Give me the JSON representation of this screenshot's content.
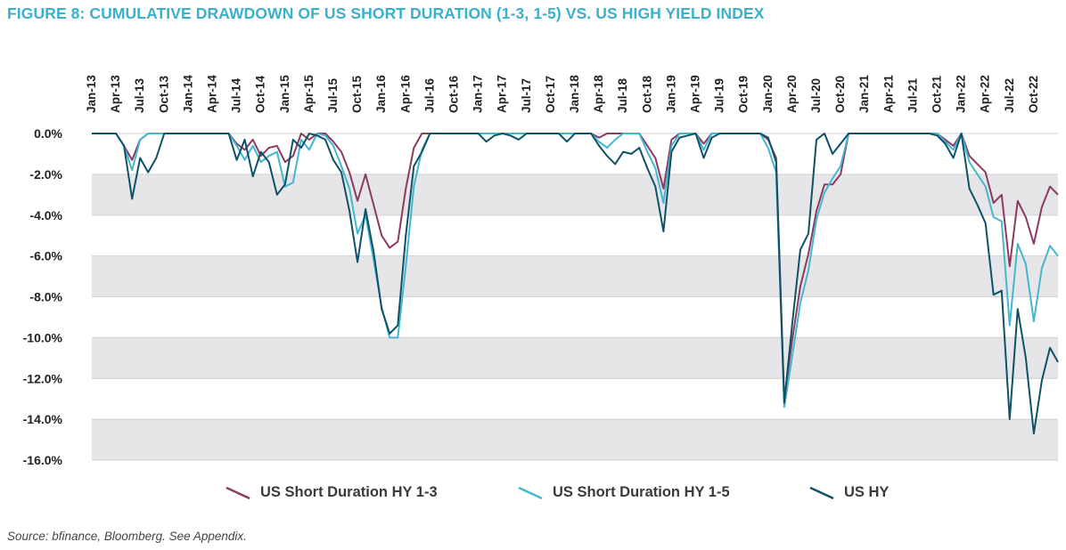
{
  "title": "FIGURE 8: CUMULATIVE DRAWDOWN OF US SHORT DURATION (1-3, 1-5) VS. US HIGH YIELD INDEX",
  "source": "Source: bfinance, Bloomberg. See Appendix.",
  "colors": {
    "title": "#3ab1cc",
    "band": "#e6e6e8",
    "series_1_3": "#8b3a62",
    "series_1_5": "#44b7cf",
    "series_hy": "#0f5166"
  },
  "chart_data": {
    "type": "line",
    "title": "FIGURE 8: CUMULATIVE DRAWDOWN OF US SHORT DURATION (1-3, 1-5) VS. US HIGH YIELD INDEX",
    "xlabel": "",
    "ylabel": "",
    "ylim": [
      -16,
      0
    ],
    "yticks": [
      "0.0%",
      "-2.0%",
      "-4.0%",
      "-6.0%",
      "-8.0%",
      "-10.0%",
      "-12.0%",
      "-14.0%",
      "-16.0%"
    ],
    "y_tick_values": [
      0,
      -2,
      -4,
      -6,
      -8,
      -10,
      -12,
      -14,
      -16
    ],
    "xticks": [
      "Jan-13",
      "Apr-13",
      "Jul-13",
      "Oct-13",
      "Jan-14",
      "Apr-14",
      "Jul-14",
      "Oct-14",
      "Jan-15",
      "Apr-15",
      "Jul-15",
      "Oct-15",
      "Jan-16",
      "Apr-16",
      "Jul-16",
      "Oct-16",
      "Jan-17",
      "Apr-17",
      "Jul-17",
      "Oct-17",
      "Jan-18",
      "Apr-18",
      "Jul-18",
      "Oct-18",
      "Jan-19",
      "Apr-19",
      "Jul-19",
      "Oct-19",
      "Jan-20",
      "Apr-20",
      "Jul-20",
      "Oct-20",
      "Jan-21",
      "Apr-21",
      "Jul-21",
      "Oct-21",
      "Jan-22",
      "Apr-22",
      "Jul-22",
      "Oct-22"
    ],
    "x_start": "Jan-13",
    "x_end": "Dec-22",
    "grid": "alternating horizontal bands",
    "legend_position": "bottom",
    "series": [
      {
        "name": "US Short Duration HY 1-3",
        "color": "#8b3a62",
        "values": [
          0,
          0,
          0,
          0,
          -0.6,
          -1.3,
          -0.3,
          0,
          0,
          0,
          0,
          0,
          0,
          0,
          0,
          0,
          0,
          0,
          -0.5,
          -0.8,
          -0.3,
          -1.1,
          -0.7,
          -0.6,
          -1.4,
          -1.1,
          0,
          -0.3,
          0,
          0,
          -0.4,
          -0.9,
          -1.9,
          -3.3,
          -2.0,
          -3.5,
          -5.0,
          -5.6,
          -5.3,
          -2.7,
          -0.7,
          0,
          0,
          0,
          0,
          0,
          0,
          0,
          0,
          0,
          0,
          0,
          0,
          0,
          0,
          0,
          0,
          0,
          0,
          0,
          0,
          0,
          0,
          -0.2,
          0,
          0,
          0,
          0,
          0,
          -0.6,
          -1.2,
          -2.7,
          -0.3,
          0,
          0,
          0,
          -0.5,
          0,
          0,
          0,
          0,
          0,
          0,
          0,
          -0.3,
          -1.2,
          -13.0,
          -10.1,
          -7.5,
          -5.9,
          -3.8,
          -2.5,
          -2.5,
          -2.0,
          0,
          0,
          0,
          0,
          0,
          0,
          0,
          0,
          0,
          0,
          0,
          0,
          -0.3,
          -0.6,
          0,
          -1.1,
          -1.5,
          -1.9,
          -3.4,
          -3.0,
          -6.5,
          -3.3,
          -4.1,
          -5.4,
          -3.6,
          -2.6,
          -3.0
        ]
      },
      {
        "name": "US Short Duration HY 1-5",
        "color": "#44b7cf",
        "values": [
          0,
          0,
          0,
          0,
          -0.6,
          -1.8,
          -0.3,
          0,
          0,
          0,
          0,
          0,
          0,
          0,
          0,
          0,
          0,
          0,
          -0.6,
          -1.3,
          -0.6,
          -1.4,
          -1.1,
          -0.9,
          -2.6,
          -2.4,
          -0.3,
          -0.8,
          0,
          -0.1,
          -0.6,
          -1.6,
          -2.7,
          -4.9,
          -4.0,
          -6.2,
          -8.5,
          -10.0,
          -10.0,
          -6.5,
          -2.6,
          -0.8,
          0,
          0,
          0,
          0,
          0,
          0,
          0,
          0,
          0,
          0,
          0,
          0,
          0,
          0,
          0,
          0,
          0,
          0,
          0,
          0,
          0,
          -0.4,
          -0.7,
          -0.3,
          0,
          0,
          0,
          -0.9,
          -1.7,
          -3.4,
          -0.6,
          0,
          0,
          0,
          -0.8,
          0,
          0,
          0,
          0,
          0,
          0,
          0,
          -0.7,
          -1.9,
          -13.4,
          -10.9,
          -8.3,
          -6.7,
          -4.2,
          -2.9,
          -2.2,
          -1.6,
          0,
          0,
          0,
          0,
          0,
          0,
          0,
          0,
          0,
          0,
          0,
          0,
          -0.4,
          -0.8,
          0,
          -1.4,
          -2.0,
          -2.6,
          -4.1,
          -4.3,
          -9.4,
          -5.4,
          -6.4,
          -9.2,
          -6.6,
          -5.5,
          -6.0
        ]
      },
      {
        "name": "US HY",
        "color": "#0f5166",
        "values": [
          0,
          0,
          0,
          0,
          -0.6,
          -3.2,
          -1.2,
          -1.9,
          -1.2,
          0,
          0,
          0,
          0,
          0,
          0,
          0,
          0,
          0,
          -1.3,
          -0.3,
          -2.1,
          -0.9,
          -1.4,
          -3.0,
          -2.5,
          -0.3,
          -0.7,
          0,
          -0.1,
          -0.3,
          -1.3,
          -1.9,
          -3.8,
          -6.3,
          -3.7,
          -5.8,
          -8.6,
          -9.8,
          -9.4,
          -5.0,
          -1.6,
          -0.9,
          0,
          0,
          0,
          0,
          0,
          0,
          0,
          -0.4,
          -0.1,
          0,
          -0.1,
          -0.3,
          0,
          0,
          0,
          0,
          0,
          -0.4,
          0,
          0,
          0,
          -0.6,
          -1.1,
          -1.5,
          -0.9,
          -1.0,
          -0.7,
          -1.7,
          -2.6,
          -4.8,
          -0.9,
          -0.2,
          -0.1,
          0,
          -1.2,
          -0.2,
          0,
          0,
          0,
          0,
          0,
          0,
          -0.2,
          -1.4,
          -13.2,
          -9.3,
          -5.7,
          -4.9,
          -0.3,
          0,
          -1.0,
          -0.5,
          0,
          0,
          0,
          0,
          0,
          0,
          0,
          0,
          0,
          0,
          0,
          -0.1,
          -0.5,
          -1.2,
          0,
          -2.7,
          -3.5,
          -4.4,
          -7.9,
          -7.7,
          -14.0,
          -8.6,
          -11.0,
          -14.7,
          -12.1,
          -10.5,
          -11.2
        ]
      }
    ]
  }
}
